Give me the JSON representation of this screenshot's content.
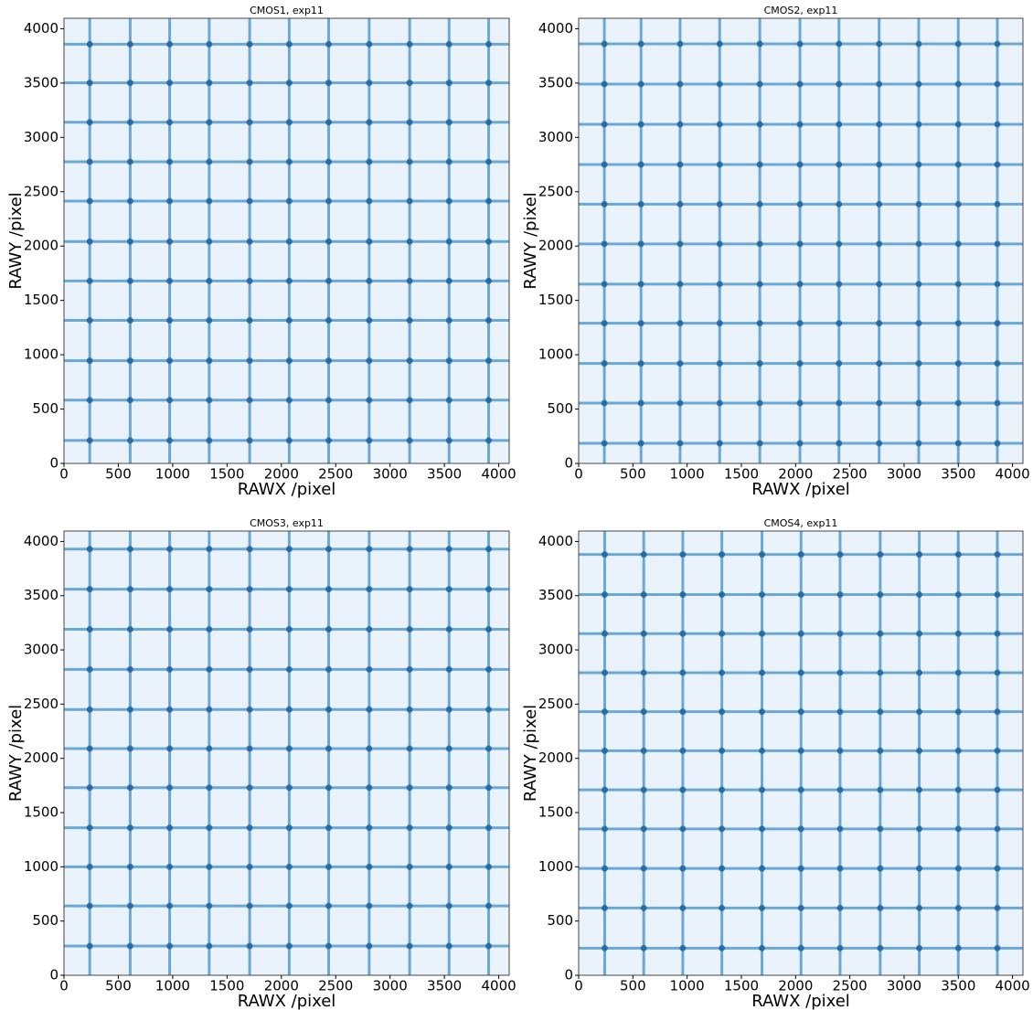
{
  "chart_data": [
    {
      "type": "image",
      "title": "CMOS1, exp11",
      "xlabel": "RAWX /pixel",
      "ylabel": "RAWY /pixel",
      "xlim": [
        0,
        4096
      ],
      "ylim": [
        0,
        4096
      ],
      "xticks": [
        0,
        500,
        1000,
        1500,
        2000,
        2500,
        3000,
        3500,
        4000
      ],
      "yticks": [
        0,
        500,
        1000,
        1500,
        2000,
        2500,
        3000,
        3500,
        4000
      ],
      "color": "#3f8fcc",
      "background": "#eaf3fb",
      "column_x": [
        237,
        609,
        972,
        1336,
        1708,
        2072,
        2435,
        2808,
        3180,
        3543,
        3907
      ],
      "row_y": [
        211,
        582,
        945,
        1316,
        1679,
        2042,
        2414,
        2776,
        3139,
        3502,
        3857
      ]
    },
    {
      "type": "image",
      "title": "CMOS2, exp11",
      "xlabel": "RAWX /pixel",
      "ylabel": "RAWY /pixel",
      "xlim": [
        0,
        4096
      ],
      "ylim": [
        0,
        4096
      ],
      "xticks": [
        0,
        500,
        1000,
        1500,
        2000,
        2500,
        3000,
        3500,
        4000
      ],
      "yticks": [
        0,
        500,
        1000,
        1500,
        2000,
        2500,
        3000,
        3500,
        4000
      ],
      "color": "#3f8fcc",
      "background": "#eaf3fb",
      "column_x": [
        237,
        575,
        935,
        1300,
        1670,
        2040,
        2400,
        2770,
        3135,
        3500,
        3860
      ],
      "row_y": [
        185,
        555,
        920,
        1290,
        1650,
        2020,
        2385,
        2750,
        3120,
        3490,
        3860
      ]
    },
    {
      "type": "image",
      "title": "CMOS3, exp11",
      "xlabel": "RAWX /pixel",
      "ylabel": "RAWY /pixel",
      "xlim": [
        0,
        4096
      ],
      "ylim": [
        0,
        4096
      ],
      "xticks": [
        0,
        500,
        1000,
        1500,
        2000,
        2500,
        3000,
        3500,
        4000
      ],
      "yticks": [
        0,
        500,
        1000,
        1500,
        2000,
        2500,
        3000,
        3500,
        4000
      ],
      "color": "#3f8fcc",
      "background": "#eaf3fb",
      "column_x": [
        237,
        609,
        972,
        1336,
        1708,
        2072,
        2435,
        2808,
        3180,
        3543,
        3907
      ],
      "row_y": [
        270,
        640,
        1000,
        1360,
        1730,
        2090,
        2450,
        2820,
        3190,
        3560,
        3930
      ]
    },
    {
      "type": "image",
      "title": "CMOS4, exp11",
      "xlabel": "RAWX /pixel",
      "ylabel": "RAWY /pixel",
      "xlim": [
        0,
        4096
      ],
      "ylim": [
        0,
        4096
      ],
      "xticks": [
        0,
        500,
        1000,
        1500,
        2000,
        2500,
        3000,
        3500,
        4000
      ],
      "yticks": [
        0,
        500,
        1000,
        1500,
        2000,
        2500,
        3000,
        3500,
        4000
      ],
      "color": "#3f8fcc",
      "background": "#eaf3fb",
      "column_x": [
        240,
        600,
        960,
        1320,
        1690,
        2050,
        2410,
        2780,
        3140,
        3500,
        3860
      ],
      "row_y": [
        250,
        620,
        985,
        1350,
        1710,
        2070,
        2430,
        2790,
        3150,
        3510,
        3880
      ]
    }
  ]
}
